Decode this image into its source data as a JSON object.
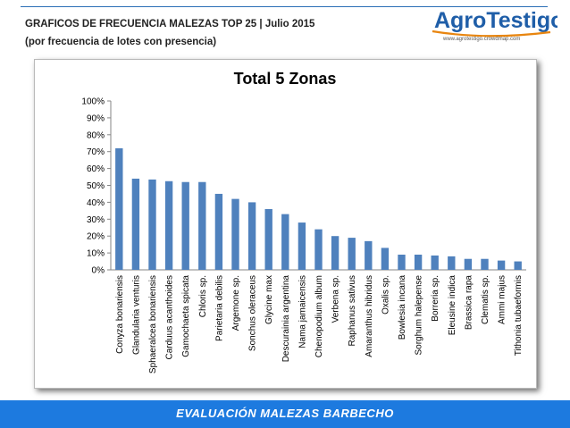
{
  "header": {
    "title": "GRAFICOS DE FRECUENCIA MALEZAS TOP 25 | Julio 2015",
    "subtitle": "(por frecuencia de lotes con presencia)"
  },
  "logo": {
    "name": "AgroTestigo",
    "url": "www.agrotestigo.crowdmap.com"
  },
  "footer": {
    "text": "EVALUACIÓN MALEZAS BARBECHO"
  },
  "colors": {
    "bar": "#4f81bd",
    "footer": "#1d7adf",
    "logo_blue": "#1f5ea8",
    "logo_orange": "#e8850f"
  },
  "chart_data": {
    "type": "bar",
    "title": "Total 5 Zonas",
    "xlabel": "",
    "ylabel": "",
    "ylim": [
      0,
      100
    ],
    "yticks": [
      "0%",
      "10%",
      "20%",
      "30%",
      "40%",
      "50%",
      "60%",
      "70%",
      "80%",
      "90%",
      "100%"
    ],
    "grid": false,
    "categories": [
      "Conyza bonariensis",
      "Glandularia venturis",
      "Sphaeralcea bonariensis",
      "Carduus acanthoides",
      "Gamochaeta spicata",
      "Chloris sp.",
      "Parietaria debilis",
      "Argemone sp.",
      "Sonchus oleraceus",
      "Glycine max",
      "Descurainia argentina",
      "Nama jamaicensis",
      "Chenopodium album",
      "Verbena sp.",
      "Raphanus sativus",
      "Amaranthus hibridus",
      "Oxalis sp.",
      "Bowlesia incana",
      "Sorghum halepense",
      "Borreria sp.",
      "Eleusine indica",
      "Brassica rapa",
      "Clematis sp.",
      "Ammi majus",
      "Tithonia tubaeformis"
    ],
    "values": [
      72,
      54,
      53.5,
      52.5,
      52,
      52,
      45,
      42,
      40,
      36,
      33,
      28,
      24,
      20,
      19,
      17,
      13,
      9,
      9,
      8.5,
      8,
      6.5,
      6.5,
      5.5,
      5
    ]
  }
}
